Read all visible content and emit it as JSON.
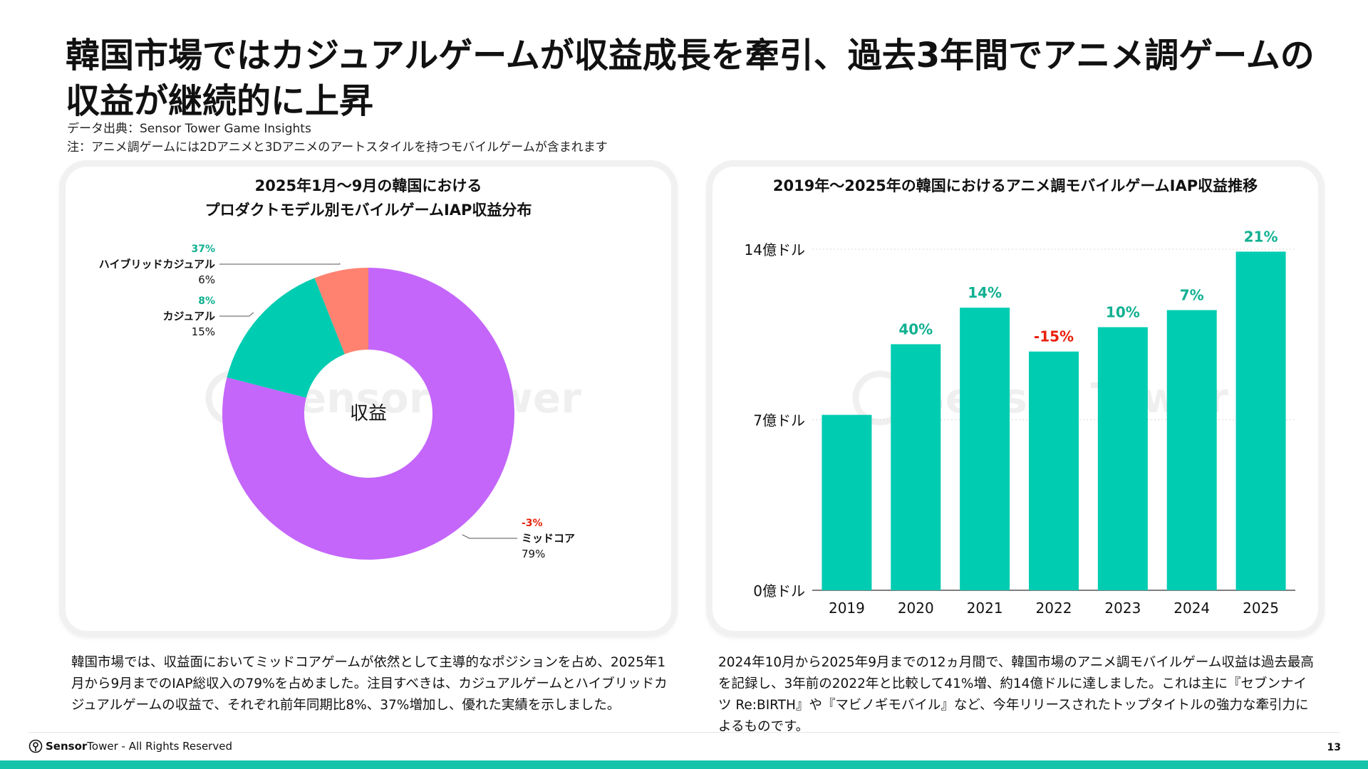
{
  "title": "韓国市場ではカジュアルゲームが収益成長を牽引、過去3年間でアニメ調ゲームの収益が継続的に上昇",
  "source_note": "データ出典：Sensor Tower Game Insights",
  "note": "注：アニメ調ゲームには2Dアニメと3Dアニメのアートスタイルを持つモバイルゲームが含まれます",
  "watermark": "Sensor Tower",
  "colors": {
    "accent": "#00CCB1",
    "purple": "#C466FA",
    "salmon": "#FF8270",
    "growth_text": "#10B091",
    "negative_text": "#E8200A"
  },
  "chart_data": [
    {
      "type": "pie",
      "title": "2025年1月〜9月の韓国における\nプロダクトモデル別モバイルゲームIAP収益分布",
      "center_label": "収益",
      "slices": [
        {
          "name": "ミッドコア",
          "value": 79,
          "value_label": "79%",
          "growth": "-3%",
          "color": "#C466FA"
        },
        {
          "name": "カジュアル",
          "value": 15,
          "value_label": "15%",
          "growth": "8%",
          "color": "#00CCB1"
        },
        {
          "name": "ハイブリッドカジュアル",
          "value": 6,
          "value_label": "6%",
          "growth": "37%",
          "color": "#FF8270"
        }
      ]
    },
    {
      "type": "bar",
      "title": "2019年〜2025年の韓国におけるアニメ調モバイルゲームIAP収益推移",
      "categories": [
        "2019",
        "2020",
        "2021",
        "2022",
        "2023",
        "2024",
        "2025"
      ],
      "values": [
        7.2,
        10.1,
        11.6,
        9.8,
        10.8,
        11.5,
        13.9
      ],
      "growth_labels": [
        "",
        "40%",
        "14%",
        "-15%",
        "10%",
        "7%",
        "21%"
      ],
      "y_ticks": [
        0,
        7,
        14
      ],
      "y_tick_labels": [
        "0億ドル",
        "7億ドル",
        "14億ドル"
      ],
      "ylim": [
        0,
        14
      ],
      "grid": true,
      "color": "#00CCB1"
    }
  ],
  "desc_left": "韓国市場では、収益面においてミッドコアゲームが依然として主導的なポジションを占め、2025年1月から9月までのIAP総収入の79%を占めました。注目すべきは、カジュアルゲームとハイブリッドカジュアルゲームの収益で、それぞれ前年同期比8%、37%増加し、優れた実績を示しました。",
  "desc_right": "2024年10月から2025年9月までの12ヵ月間で、韓国市場のアニメ調モバイルゲーム収益は過去最高を記録し、3年前の2022年と比較して41%増、約14億ドルに達しました。これは主に『セブンナイツ Re:BIRTH』や『マビノギモバイル』など、今年リリースされたトップタイトルの強力な牽引力によるものです。",
  "footer": {
    "logo_bold": "Sensor",
    "logo_rest": "Tower",
    "rights": " - All Rights Reserved",
    "page": "13"
  }
}
